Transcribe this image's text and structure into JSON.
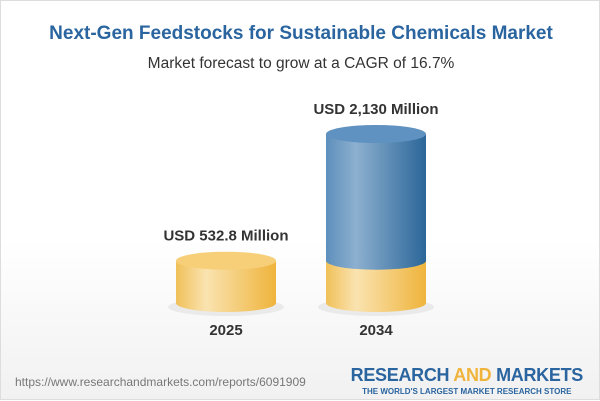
{
  "chart_data": {
    "type": "bar",
    "title": "Next-Gen Feedstocks for Sustainable Chemicals Market",
    "subtitle": "Market forecast to grow at a CAGR of 16.7%",
    "categories": [
      "2025",
      "2034"
    ],
    "values": [
      532.8,
      2130
    ],
    "data_labels": [
      "USD 532.8 Million",
      "USD 2,130 Million"
    ],
    "unit": "USD Million",
    "colors": {
      "base": "#f2c35a",
      "growth": "#3f78ad",
      "title": "#2a65a0"
    }
  },
  "footer": {
    "url": "https://www.researchandmarkets.com/reports/6091909",
    "logo_part1": "RESEARCH ",
    "logo_part2": "AND",
    "logo_part3": " MARKETS",
    "tagline": "THE WORLD'S LARGEST MARKET RESEARCH STORE"
  }
}
